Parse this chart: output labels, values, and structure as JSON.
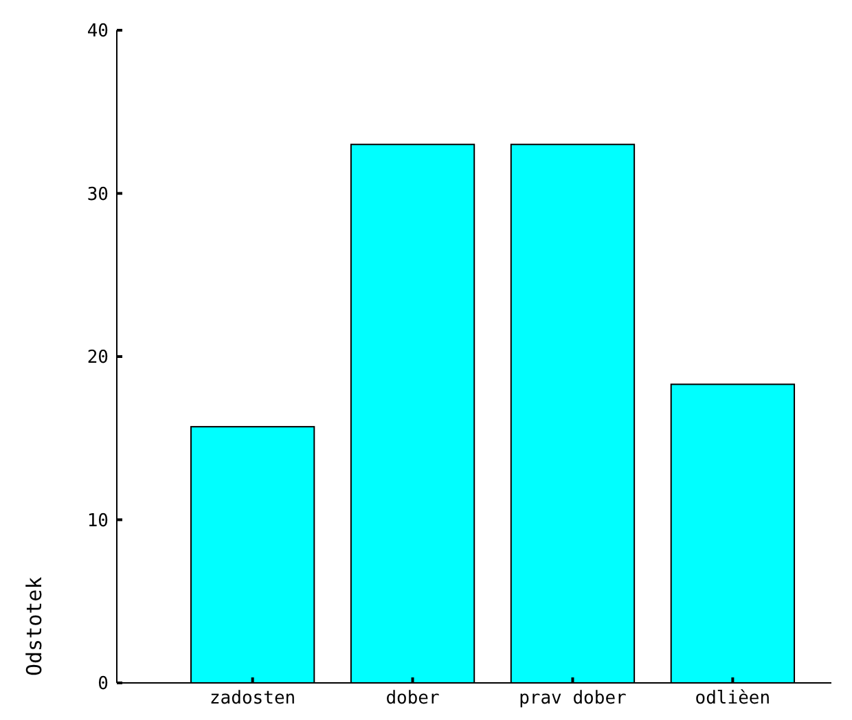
{
  "chart_data": {
    "type": "bar",
    "ylabel": "Odstotek",
    "categories": [
      "zadosten",
      "dober",
      "prav dober",
      "odlièen"
    ],
    "values": [
      15.7,
      33.0,
      33.0,
      18.3
    ],
    "color": "#00ffff",
    "ylim": [
      0,
      40
    ],
    "yticks": [
      0,
      10,
      20,
      30,
      40
    ],
    "grid": false
  }
}
